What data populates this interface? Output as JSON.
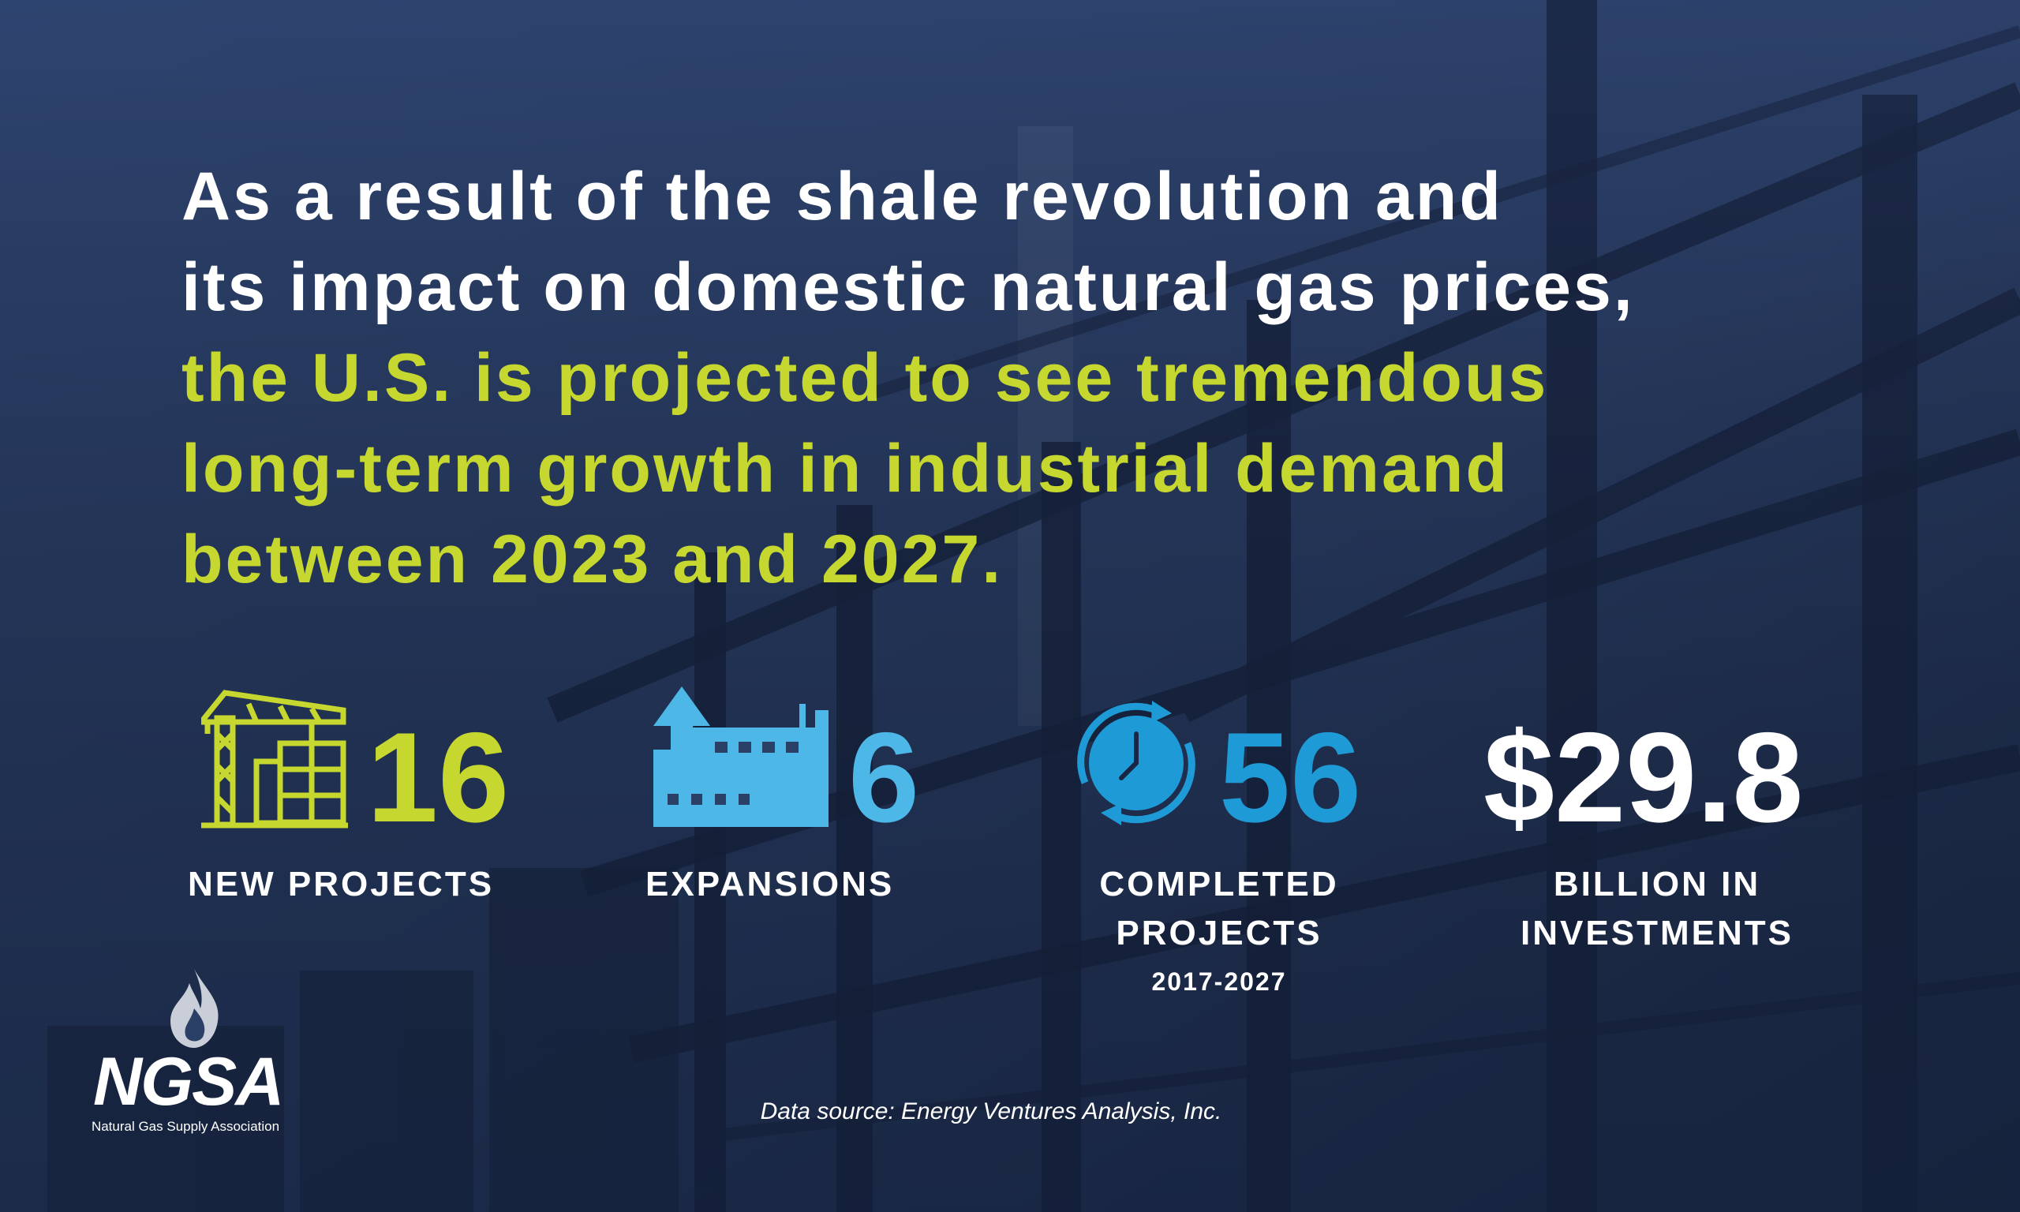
{
  "headline": {
    "line1": "As a result of the shale revolution and",
    "line2": "its impact on domestic natural gas prices,",
    "line3": "the U.S. is projected to see tremendous",
    "line4": "long-term growth in industrial demand",
    "line5": "between 2023 and 2027."
  },
  "colors": {
    "accent_green": "#c6d72f",
    "accent_lightblue": "#4db8e8",
    "accent_blue": "#1e9bd7",
    "background": "#2b4066"
  },
  "stats": [
    {
      "icon": "construction-crane-icon",
      "value": "16",
      "label": "NEW PROJECTS"
    },
    {
      "icon": "factory-expansion-icon",
      "value": "6",
      "label": "EXPANSIONS"
    },
    {
      "icon": "clock-cycle-icon",
      "value": "56",
      "label_line1": "COMPLETED",
      "label_line2": "PROJECTS",
      "period": "2017-2027"
    },
    {
      "value": "$29.8",
      "label_line1": "BILLION IN",
      "label_line2": "INVESTMENTS"
    }
  ],
  "source": "Data source: Energy Ventures Analysis, Inc.",
  "logo": {
    "icon": "flame-icon",
    "name": "NGSA",
    "tagline": "Natural Gas Supply Association"
  }
}
